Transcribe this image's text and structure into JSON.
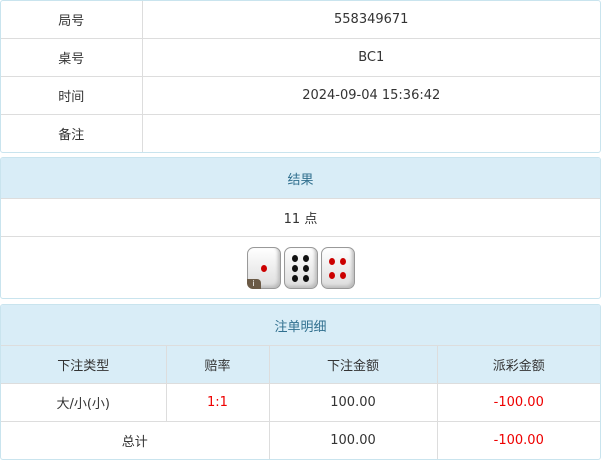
{
  "info": {
    "rows": [
      {
        "label": "局号",
        "value": "558349671"
      },
      {
        "label": "桌号",
        "value": "BC1"
      },
      {
        "label": "时间",
        "value": "2024-09-04 15:36:42"
      },
      {
        "label": "备注",
        "value": ""
      }
    ]
  },
  "result": {
    "title": "结果",
    "points": "11 点",
    "dice": [
      1,
      6,
      4
    ],
    "info_badge": "i"
  },
  "bets": {
    "title": "注单明细",
    "headers": [
      "下注类型",
      "赔率",
      "下注金额",
      "派彩金额"
    ],
    "rows": [
      {
        "type": "大/小(小)",
        "odds": "1:1",
        "amount": "100.00",
        "payout": "-100.00"
      }
    ],
    "total": {
      "label": "总计",
      "amount": "100.00",
      "payout": "-100.00"
    }
  },
  "colors": {
    "header_bg": "#d9edf7",
    "negative": "#e00000",
    "odds": "#e00000"
  }
}
